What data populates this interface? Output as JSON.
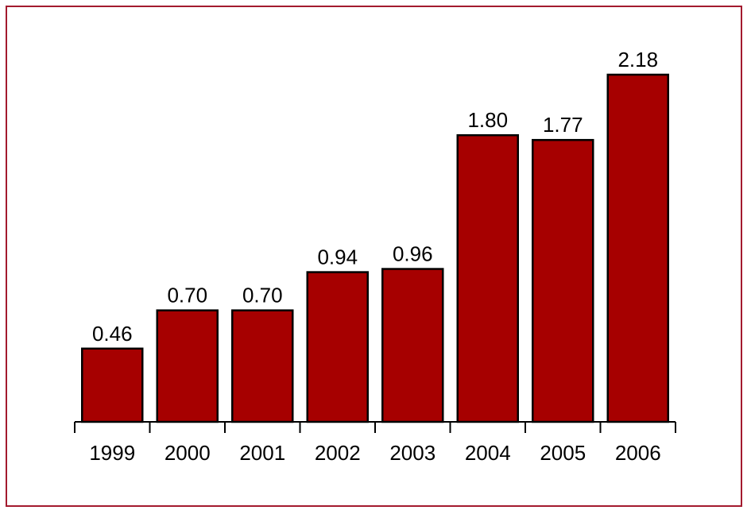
{
  "chart_data": {
    "type": "bar",
    "categories": [
      "1999",
      "2000",
      "2001",
      "2002",
      "2003",
      "2004",
      "2005",
      "2006"
    ],
    "values": [
      0.46,
      0.7,
      0.7,
      0.94,
      0.96,
      1.8,
      1.77,
      2.18
    ],
    "value_labels": [
      "0.46",
      "0.70",
      "0.70",
      "0.94",
      "0.96",
      "1.80",
      "1.77",
      "2.18"
    ],
    "title": "",
    "xlabel": "",
    "ylabel": "",
    "ylim": [
      0,
      2.18
    ],
    "grid": false,
    "legend": "none",
    "colors": {
      "bar_fill": "#a60000",
      "bar_stroke": "#000000",
      "frame_border": "#a31a2e"
    }
  }
}
